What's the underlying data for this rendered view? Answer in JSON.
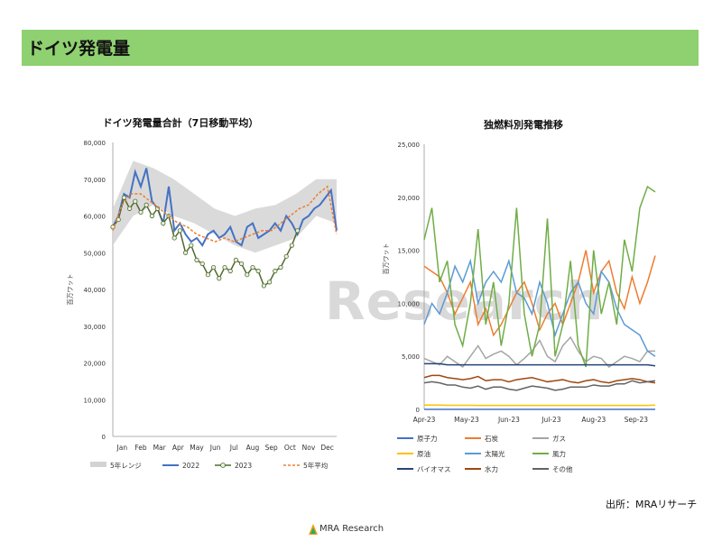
{
  "page": {
    "title": "ドイツ発電量",
    "source": "出所：MRAリサーチ",
    "logo_text": "MRA Research",
    "watermark": "Research"
  },
  "colors": {
    "title_bar": "#8fd070",
    "range": "#d3d3d3",
    "y2022": "#4472c4",
    "y2023": "#4f6a2e",
    "avg5": "#ed7d31"
  },
  "chart_data": [
    {
      "type": "line",
      "title": "ドイツ発電量合計（7日移動平均）",
      "ylabel": "百万ワット",
      "ylim": [
        0,
        80000
      ],
      "yticks": [
        "0",
        "10,000",
        "20,000",
        "30,000",
        "40,000",
        "50,000",
        "60,000",
        "70,000",
        "80,000"
      ],
      "xticks": [
        "Jan",
        "Feb",
        "Mar",
        "Apr",
        "May",
        "Jun",
        "Jul",
        "Aug",
        "Sep",
        "Oct",
        "Nov",
        "Dec"
      ],
      "legend": [
        "5年レンジ",
        "2022",
        "2023",
        "5年平均"
      ],
      "legend_position": "bottom",
      "range_min": [
        52000,
        60000,
        63000,
        60000,
        58000,
        55000,
        52000,
        50000,
        52000,
        54000,
        60000,
        58000
      ],
      "range_max": [
        62000,
        75000,
        73000,
        70000,
        66000,
        62000,
        60000,
        62000,
        63000,
        66000,
        70000,
        70000
      ],
      "series": [
        {
          "name": "2022",
          "x": [
            0,
            0.3,
            0.6,
            0.9,
            1.2,
            1.5,
            1.8,
            2.1,
            2.4,
            2.7,
            3.0,
            3.3,
            3.6,
            3.9,
            4.2,
            4.5,
            4.8,
            5.1,
            5.4,
            5.7,
            6.0,
            6.3,
            6.6,
            6.9,
            7.2,
            7.5,
            7.8,
            8.1,
            8.4,
            8.7,
            9.0,
            9.3,
            9.6,
            9.9,
            10.2,
            10.5,
            10.8,
            11.1,
            11.4,
            11.7,
            12.0
          ],
          "values": [
            57000,
            60000,
            66000,
            65000,
            72000,
            68000,
            73000,
            64000,
            62000,
            58000,
            68000,
            56000,
            58000,
            55000,
            53000,
            54000,
            52000,
            55000,
            56000,
            54000,
            55000,
            57000,
            53000,
            52000,
            57000,
            58000,
            54000,
            55000,
            56000,
            58000,
            56000,
            60000,
            58000,
            55000,
            59000,
            60000,
            62000,
            63000,
            65000,
            67000,
            56000
          ]
        },
        {
          "name": "2023",
          "x": [
            0,
            0.3,
            0.6,
            0.9,
            1.2,
            1.5,
            1.8,
            2.1,
            2.4,
            2.7,
            3.0,
            3.3,
            3.6,
            3.9,
            4.2,
            4.5,
            4.8,
            5.1,
            5.4,
            5.7,
            6.0,
            6.3,
            6.6,
            6.9,
            7.2,
            7.5,
            7.8,
            8.1,
            8.4,
            8.7,
            9.0,
            9.3,
            9.6,
            9.9
          ],
          "values": [
            57000,
            59000,
            65000,
            62000,
            64000,
            61000,
            63000,
            60000,
            62000,
            58000,
            60000,
            54000,
            56000,
            50000,
            52000,
            48000,
            47000,
            44000,
            46000,
            43000,
            46000,
            45000,
            48000,
            47000,
            44000,
            46000,
            45000,
            41000,
            42000,
            45000,
            46000,
            49000,
            52000,
            56000
          ]
        },
        {
          "name": "5年平均",
          "x": [
            0,
            0.5,
            1,
            1.5,
            2,
            2.5,
            3,
            3.5,
            4,
            4.5,
            5,
            5.5,
            6,
            6.5,
            7,
            7.5,
            8,
            8.5,
            9,
            9.5,
            10,
            10.5,
            11,
            11.5,
            12
          ],
          "values": [
            56000,
            63000,
            66000,
            66000,
            64000,
            62000,
            60000,
            58000,
            57000,
            55000,
            54000,
            53000,
            54000,
            53000,
            54000,
            55000,
            56000,
            56000,
            58000,
            60000,
            62000,
            63000,
            66000,
            68000,
            55000
          ]
        }
      ]
    },
    {
      "type": "line",
      "title": "独燃料別発電推移",
      "ylabel": "百万ワット",
      "ylim": [
        0,
        25000
      ],
      "yticks": [
        "0",
        "5,000",
        "10,000",
        "15,000",
        "20,000",
        "25,000"
      ],
      "xticks": [
        "Apr-23",
        "May-23",
        "Jun-23",
        "Jul-23",
        "Aug-23",
        "Sep-23"
      ],
      "legend": [
        "原子力",
        "石炭",
        "ガス",
        "原油",
        "太陽光",
        "風力",
        "バイオマス",
        "水力",
        "その他"
      ],
      "legend_position": "bottom",
      "series": [
        {
          "name": "原子力",
          "color": "#4472c4",
          "values": [
            0,
            0,
            0,
            0,
            0,
            0,
            0,
            0,
            0,
            0,
            0,
            0,
            0,
            0,
            0,
            0,
            0,
            0,
            0,
            0,
            0,
            0,
            0,
            0,
            0,
            0,
            0,
            0,
            0,
            0,
            0
          ]
        },
        {
          "name": "石炭",
          "color": "#ed7d31",
          "values": [
            13500,
            13000,
            12500,
            11000,
            9000,
            10500,
            12000,
            8000,
            9500,
            7000,
            8000,
            9500,
            11000,
            12000,
            10000,
            7500,
            9000,
            10000,
            8000,
            10000,
            12000,
            15000,
            11000,
            13000,
            14000,
            11000,
            9500,
            12500,
            10000,
            12000,
            14500
          ]
        },
        {
          "name": "ガス",
          "color": "#a5a5a5",
          "values": [
            4800,
            4500,
            4200,
            5000,
            4500,
            4000,
            5000,
            6000,
            4800,
            5200,
            5500,
            5000,
            4200,
            4800,
            5500,
            6500,
            5000,
            4500,
            6000,
            6800,
            5500,
            4500,
            5000,
            4800,
            4000,
            4500,
            5000,
            4800,
            4500,
            5500,
            5500
          ]
        },
        {
          "name": "原油",
          "color": "#ffc000",
          "values": [
            400,
            400,
            400,
            380,
            380,
            380,
            380,
            370,
            370,
            370,
            370,
            370,
            370,
            370,
            370,
            370,
            370,
            370,
            370,
            370,
            370,
            370,
            370,
            370,
            370,
            370,
            370,
            370,
            370,
            370,
            400
          ]
        },
        {
          "name": "太陽光",
          "color": "#5b9bd5",
          "values": [
            8000,
            10000,
            9000,
            11000,
            13500,
            12000,
            14000,
            10000,
            12000,
            13000,
            12000,
            14000,
            11000,
            10500,
            9000,
            12000,
            10000,
            7000,
            9000,
            11000,
            12000,
            10000,
            9000,
            13000,
            12000,
            9500,
            8000,
            7500,
            7000,
            5500,
            5000
          ]
        },
        {
          "name": "風力",
          "color": "#70ad47",
          "values": [
            16000,
            19000,
            12000,
            14000,
            8000,
            6000,
            10000,
            17000,
            8000,
            12000,
            6000,
            10000,
            19000,
            9000,
            5000,
            8000,
            18000,
            5000,
            8000,
            14000,
            6000,
            4000,
            15000,
            9000,
            12000,
            8000,
            16000,
            13000,
            19000,
            21000,
            20500
          ]
        },
        {
          "name": "バイオマス",
          "color": "#264478",
          "values": [
            4300,
            4300,
            4300,
            4200,
            4200,
            4200,
            4200,
            4200,
            4200,
            4200,
            4200,
            4200,
            4200,
            4200,
            4200,
            4200,
            4200,
            4200,
            4200,
            4200,
            4200,
            4200,
            4200,
            4200,
            4200,
            4200,
            4200,
            4200,
            4200,
            4200,
            4100
          ]
        },
        {
          "name": "水力",
          "color": "#9e480e",
          "values": [
            3000,
            3200,
            3200,
            3000,
            2900,
            2800,
            2900,
            3100,
            2700,
            2800,
            2800,
            2600,
            2800,
            2900,
            3000,
            2800,
            2600,
            2700,
            2800,
            2600,
            2500,
            2700,
            2800,
            2600,
            2500,
            2700,
            2800,
            2900,
            2800,
            2600,
            2500
          ]
        },
        {
          "name": "その他",
          "color": "#636363",
          "values": [
            2500,
            2600,
            2500,
            2300,
            2300,
            2100,
            2000,
            2200,
            1900,
            2100,
            2100,
            1900,
            1800,
            2000,
            2200,
            2100,
            2000,
            1800,
            1900,
            2100,
            2100,
            2100,
            2300,
            2200,
            2200,
            2400,
            2400,
            2700,
            2500,
            2600,
            2700
          ]
        }
      ]
    }
  ]
}
